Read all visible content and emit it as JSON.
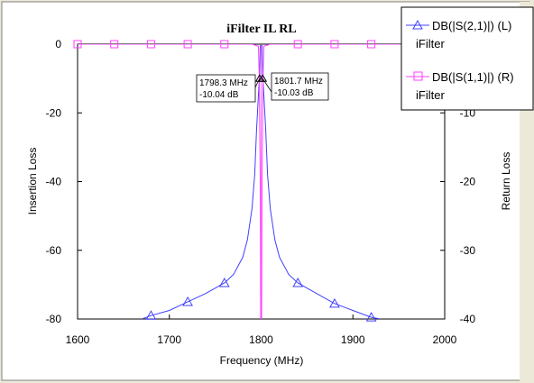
{
  "chart_data": {
    "type": "line",
    "title": "iFilter IL RL",
    "xlabel": "Frequency (MHz)",
    "ylabel_left": "Insertion Loss",
    "ylabel_right": "Return Loss",
    "xlim": [
      1600,
      2000
    ],
    "ylim_left": [
      -80,
      0
    ],
    "ylim_right": [
      -40,
      0
    ],
    "x_ticks": [
      "1600",
      "1700",
      "1800",
      "1900",
      "2000"
    ],
    "y_ticks_left": [
      "0",
      "-20",
      "-40",
      "-60",
      "-80"
    ],
    "y_ticks_right": [
      "0",
      "-10",
      "-20",
      "-30",
      "-40"
    ],
    "grid": false,
    "legend_placement": "top-right",
    "series": [
      {
        "name": "DB(|S(2,1)|) (L)",
        "source": "iFilter",
        "axis": "left",
        "color": "#4040ff",
        "marker": "triangle",
        "x": [
          1670,
          1680,
          1700,
          1720,
          1740,
          1760,
          1770,
          1780,
          1785,
          1790,
          1793,
          1795,
          1796,
          1797,
          1798,
          1798.3,
          1799,
          1800,
          1801,
          1801.7,
          1802,
          1803,
          1804,
          1805,
          1807,
          1810,
          1815,
          1820,
          1830,
          1840,
          1860,
          1880,
          1900,
          1920,
          1930
        ],
        "y": [
          -80,
          -79,
          -77.5,
          -75,
          -72.5,
          -69.5,
          -67,
          -62,
          -57,
          -48,
          -38,
          -25,
          -20,
          -15,
          -10.5,
          -10.04,
          -0.5,
          -0.2,
          -0.5,
          -10.03,
          -10.5,
          -15,
          -20,
          -25,
          -38,
          -48,
          -57,
          -62,
          -67,
          -69.5,
          -72.5,
          -75.5,
          -77.5,
          -79.5,
          -80
        ],
        "marker_x": [
          1680,
          1720,
          1760,
          1840,
          1880,
          1920
        ]
      },
      {
        "name": "DB(|S(1,1)|) (R)",
        "source": "iFilter",
        "axis": "right",
        "color": "#ff40ff",
        "marker": "square",
        "x": [
          1600,
          1700,
          1790,
          1797,
          1798,
          1799,
          1799.5,
          1800,
          1800.5,
          1801,
          1802,
          1803,
          1810,
          1900,
          2000
        ],
        "y": [
          0,
          0,
          0,
          -0.3,
          -5,
          -20,
          -40,
          -40,
          -40,
          -20,
          -5,
          -0.3,
          0,
          0,
          0
        ],
        "marker_x": [
          1600,
          1640,
          1680,
          1720,
          1760,
          1840,
          1880,
          1920,
          1960
        ]
      }
    ],
    "markers": [
      {
        "freq": "1798.3 MHz",
        "value": "-10.04 dB",
        "x": 1798.3,
        "y": -10.04
      },
      {
        "freq": "1801.7 MHz",
        "value": "-10.03 dB",
        "x": 1801.7,
        "y": -10.03
      }
    ]
  }
}
